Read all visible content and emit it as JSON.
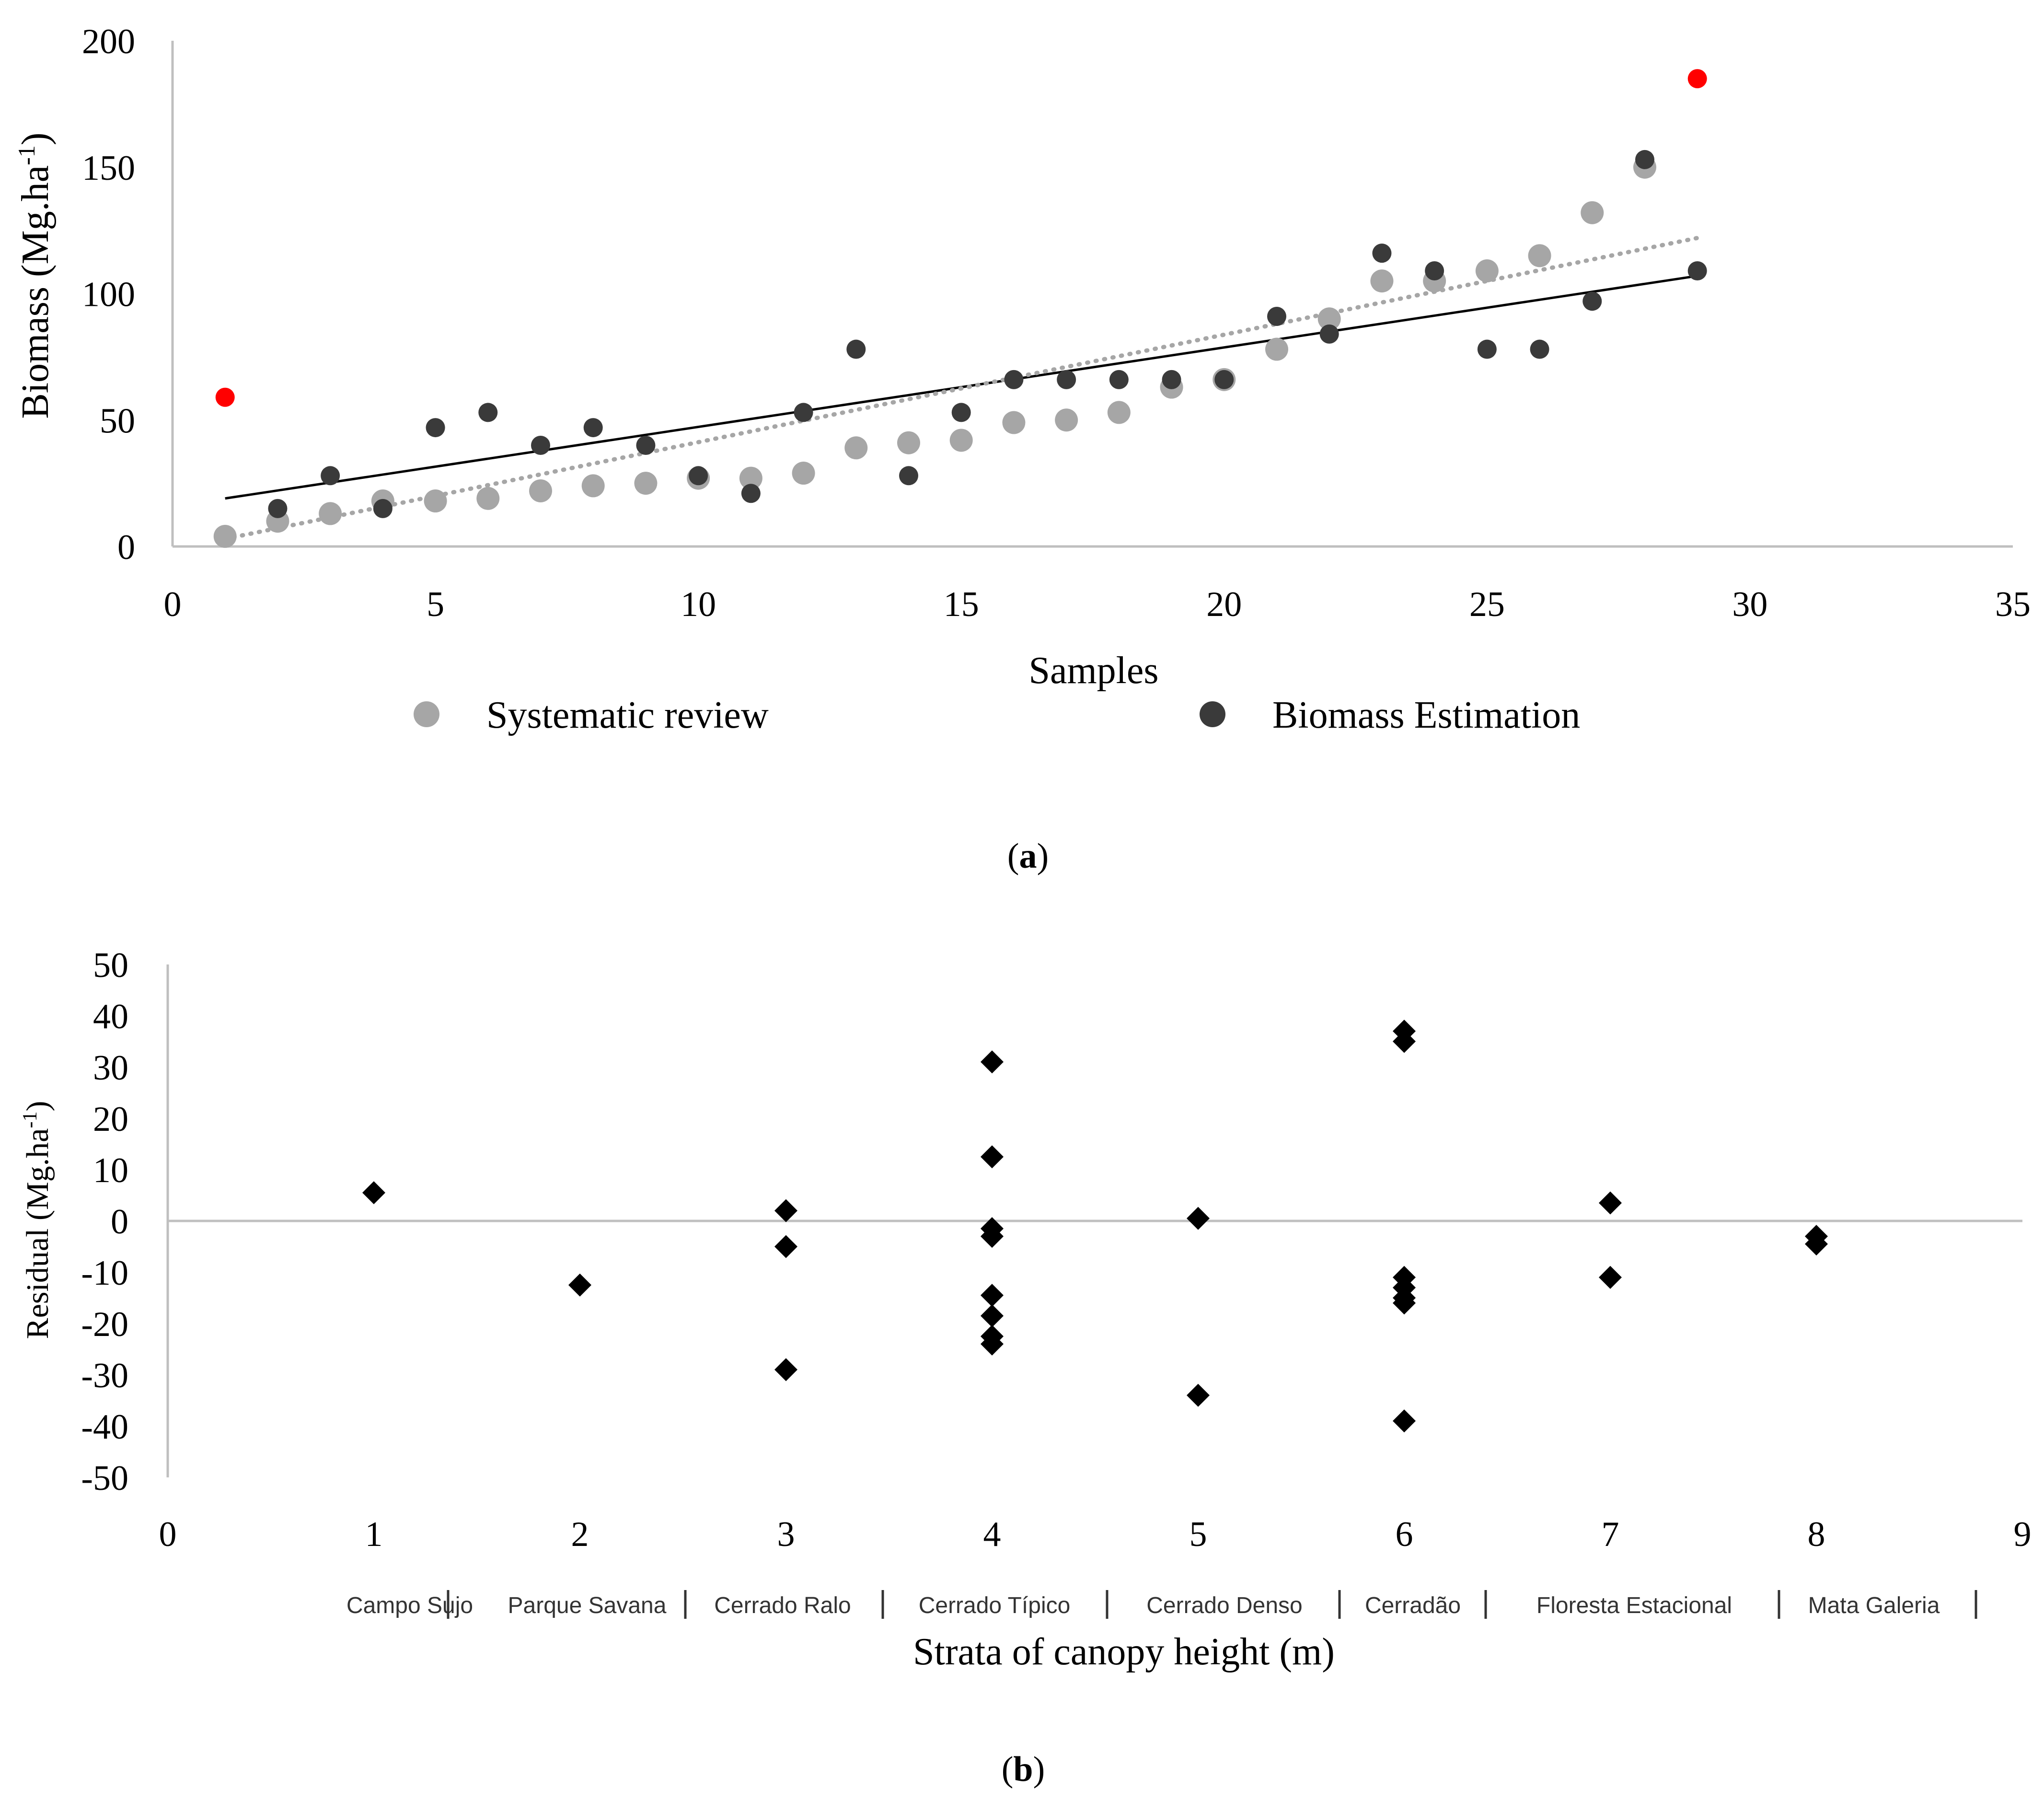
{
  "chart_data": [
    {
      "type": "scatter",
      "panel_label": "a",
      "xlabel": "Samples",
      "ylabel_main": "Biomass (Mg.ha",
      "ylabel_sup": "-1",
      "ylabel_close": ")",
      "xlim": [
        0,
        35
      ],
      "ylim": [
        0,
        200
      ],
      "xticks": [
        0,
        5,
        10,
        15,
        20,
        25,
        30,
        35
      ],
      "yticks": [
        0,
        50,
        100,
        150,
        200
      ],
      "grid": false,
      "legend_position": "bottom",
      "colors": {
        "systematic_review": "#a6a6a6",
        "biomass_estimation": "#3a3a3a",
        "highlight": "#ff0000",
        "trend_review": "#a6a6a6",
        "trend_estimation": "#000000",
        "axis": "#bfbfbf"
      },
      "series": [
        {
          "name": "Systematic review",
          "x": [
            1,
            2,
            3,
            4,
            5,
            6,
            7,
            8,
            9,
            10,
            11,
            12,
            13,
            14,
            15,
            16,
            17,
            18,
            19,
            20,
            21,
            22,
            23,
            24,
            25,
            26,
            27,
            28
          ],
          "y": [
            4,
            10,
            13,
            18,
            18,
            19,
            22,
            24,
            25,
            27,
            27,
            29,
            39,
            41,
            42,
            49,
            50,
            53,
            63,
            66,
            78,
            90,
            105,
            105,
            109,
            115,
            132,
            150
          ]
        },
        {
          "name": "Biomass Estimation",
          "x": [
            2,
            3,
            4,
            5,
            6,
            7,
            8,
            9,
            10,
            11,
            12,
            13,
            14,
            15,
            16,
            17,
            18,
            19,
            20,
            21,
            22,
            23,
            24,
            25,
            26,
            27,
            28,
            29
          ],
          "y": [
            15,
            28,
            15,
            47,
            53,
            40,
            47,
            40,
            28,
            21,
            53,
            78,
            28,
            53,
            66,
            66,
            66,
            66,
            66,
            91,
            84,
            116,
            109,
            78,
            78,
            97,
            153,
            109
          ]
        },
        {
          "name": "Highlighted",
          "x": [
            1,
            29
          ],
          "y": [
            59,
            185
          ]
        }
      ],
      "trendlines": [
        {
          "name": "Biomass Estimation trend",
          "style": "solid",
          "x": [
            1,
            29
          ],
          "y": [
            19,
            107
          ]
        },
        {
          "name": "Systematic review trend",
          "style": "dotted",
          "x": [
            1,
            29
          ],
          "y": [
            3,
            122
          ]
        }
      ]
    },
    {
      "type": "scatter",
      "panel_label": "b",
      "xlabel": "Strata of canopy height (m)",
      "ylabel_main": "Residual (Mg.ha",
      "ylabel_sup": "-1",
      "ylabel_close": ")",
      "xlim": [
        0,
        9
      ],
      "ylim": [
        -50,
        50
      ],
      "xticks": [
        0,
        1,
        2,
        3,
        4,
        5,
        6,
        7,
        8,
        9
      ],
      "yticks": [
        50,
        40,
        30,
        20,
        10,
        0,
        -10,
        -20,
        -30,
        -40,
        -50
      ],
      "grid": false,
      "marker": "diamond",
      "colors": {
        "marker": "#000000",
        "axis": "#bfbfbf"
      },
      "strata_labels": [
        "Campo Sujo",
        "Parque Savana",
        "Cerrado Ralo",
        "Cerrado Típico",
        "Cerrado Denso",
        "Cerradão",
        "Floresta Estacional",
        "Mata Galeria"
      ],
      "series": [
        {
          "name": "Residuals",
          "x": [
            1,
            2,
            3,
            3,
            3,
            4,
            4,
            4,
            4,
            4,
            4,
            4,
            4,
            5,
            5,
            6,
            6,
            6,
            6,
            6,
            6,
            6,
            7,
            7,
            8,
            8
          ],
          "y": [
            5.5,
            -12.5,
            2,
            -5,
            -29,
            31,
            12.5,
            -1.5,
            -3,
            -14.5,
            -18.5,
            -22.5,
            -24,
            0.5,
            -34,
            37,
            35,
            -11,
            -13,
            -15,
            -16,
            -39,
            3.5,
            -11,
            -3,
            -4.5
          ]
        }
      ]
    }
  ],
  "legend": [
    {
      "label": "Systematic review"
    },
    {
      "label": "Biomass Estimation"
    }
  ]
}
